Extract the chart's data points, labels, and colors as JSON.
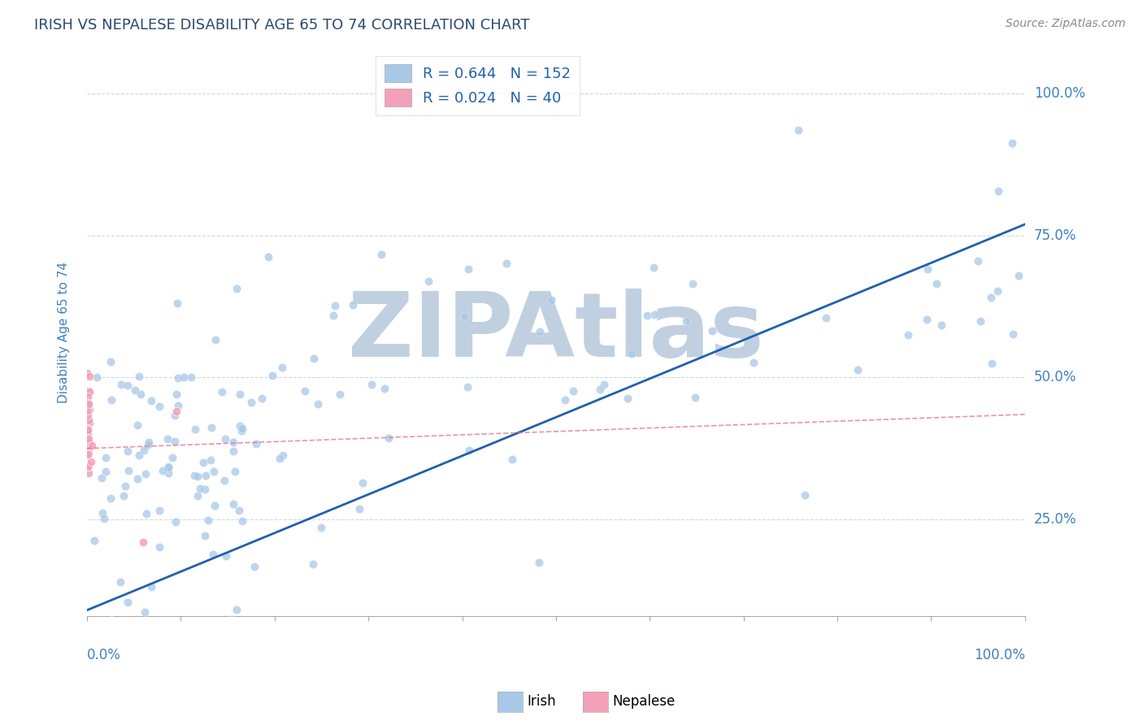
{
  "title": "IRISH VS NEPALESE DISABILITY AGE 65 TO 74 CORRELATION CHART",
  "source": "Source: ZipAtlas.com",
  "ylabel": "Disability Age 65 to 74",
  "ytick_labels": [
    "25.0%",
    "50.0%",
    "75.0%",
    "100.0%"
  ],
  "ytick_values": [
    0.25,
    0.5,
    0.75,
    1.0
  ],
  "xlim": [
    0.0,
    1.0
  ],
  "ylim": [
    0.08,
    1.08
  ],
  "irish_R": 0.644,
  "irish_N": 152,
  "nepalese_R": 0.024,
  "nepalese_N": 40,
  "irish_color": "#a8c8e8",
  "irish_line_color": "#2060b0",
  "nepalese_color": "#f4a0b8",
  "nepalese_line_color": "#e07090",
  "irish_trend_start_x": 0.0,
  "irish_trend_start_y": 0.09,
  "irish_trend_end_x": 1.0,
  "irish_trend_end_y": 0.77,
  "nepalese_trend_start_x": 0.0,
  "nepalese_trend_start_y": 0.375,
  "nepalese_trend_end_x": 1.0,
  "nepalese_trend_end_y": 0.435,
  "legend_R_color": "#2060b0",
  "grid_color": "#d0d8e0",
  "watermark_text": "ZIPAtlas",
  "watermark_color": "#c0d0e0",
  "title_color": "#2a4a6c",
  "tick_color": "#4080c0",
  "source_color": "#888888"
}
